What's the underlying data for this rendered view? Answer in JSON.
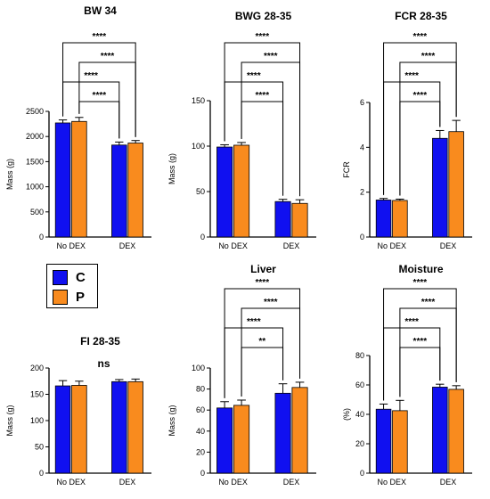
{
  "colors": {
    "C": "#1010f0",
    "P": "#f98b1e",
    "axis": "#000000"
  },
  "legend": {
    "items": [
      {
        "label": "C",
        "color": "#1010f0"
      },
      {
        "label": "P",
        "color": "#f98b1e"
      }
    ]
  },
  "chart_data": [
    {
      "type": "bar",
      "title": "BW 34",
      "ylabel": "Mass (g)",
      "categories": [
        "No DEX",
        "DEX"
      ],
      "ylim": [
        0,
        2500
      ],
      "yticks": [
        0,
        500,
        1000,
        1500,
        2000,
        2500
      ],
      "series": [
        {
          "name": "C",
          "values": [
            2270,
            1830
          ],
          "errors": [
            60,
            60
          ]
        },
        {
          "name": "P",
          "values": [
            2300,
            1870
          ],
          "errors": [
            80,
            50
          ]
        }
      ],
      "significance": [
        {
          "from": [
            "No DEX",
            "C"
          ],
          "to": [
            "DEX",
            "C"
          ],
          "label": "****"
        },
        {
          "from": [
            "No DEX",
            "C"
          ],
          "to": [
            "DEX",
            "P"
          ],
          "label": "****"
        },
        {
          "from": [
            "No DEX",
            "P"
          ],
          "to": [
            "DEX",
            "C"
          ],
          "label": "****"
        },
        {
          "from": [
            "No DEX",
            "P"
          ],
          "to": [
            "DEX",
            "P"
          ],
          "label": "****"
        }
      ]
    },
    {
      "type": "bar",
      "title": "BWG 28-35",
      "ylabel": "Mass (g)",
      "categories": [
        "No DEX",
        "DEX"
      ],
      "ylim": [
        0,
        150
      ],
      "yticks": [
        0,
        50,
        100,
        150
      ],
      "series": [
        {
          "name": "C",
          "values": [
            99,
            39
          ],
          "errors": [
            2.5,
            2.5
          ]
        },
        {
          "name": "P",
          "values": [
            101,
            37
          ],
          "errors": [
            3,
            4
          ]
        }
      ],
      "significance": [
        {
          "from": [
            "No DEX",
            "C"
          ],
          "to": [
            "DEX",
            "C"
          ],
          "label": "****"
        },
        {
          "from": [
            "No DEX",
            "C"
          ],
          "to": [
            "DEX",
            "P"
          ],
          "label": "****"
        },
        {
          "from": [
            "No DEX",
            "P"
          ],
          "to": [
            "DEX",
            "C"
          ],
          "label": "****"
        },
        {
          "from": [
            "No DEX",
            "P"
          ],
          "to": [
            "DEX",
            "P"
          ],
          "label": "****"
        }
      ]
    },
    {
      "type": "bar",
      "title": "FCR 28-35",
      "ylabel": "FCR",
      "categories": [
        "No DEX",
        "DEX"
      ],
      "ylim": [
        0,
        6
      ],
      "yticks": [
        0,
        2,
        4,
        6
      ],
      "series": [
        {
          "name": "C",
          "values": [
            1.65,
            4.4
          ],
          "errors": [
            0.07,
            0.35
          ]
        },
        {
          "name": "P",
          "values": [
            1.63,
            4.7
          ],
          "errors": [
            0.06,
            0.5
          ]
        }
      ],
      "significance": [
        {
          "from": [
            "No DEX",
            "C"
          ],
          "to": [
            "DEX",
            "C"
          ],
          "label": "****"
        },
        {
          "from": [
            "No DEX",
            "C"
          ],
          "to": [
            "DEX",
            "P"
          ],
          "label": "****"
        },
        {
          "from": [
            "No DEX",
            "P"
          ],
          "to": [
            "DEX",
            "C"
          ],
          "label": "****"
        },
        {
          "from": [
            "No DEX",
            "P"
          ],
          "to": [
            "DEX",
            "P"
          ],
          "label": "****"
        }
      ]
    },
    {
      "type": "bar",
      "title": "FI 28-35",
      "ylabel": "Mass (g)",
      "categories": [
        "No DEX",
        "DEX"
      ],
      "ylim": [
        0,
        200
      ],
      "yticks": [
        0,
        50,
        100,
        150,
        200
      ],
      "series": [
        {
          "name": "C",
          "values": [
            166,
            174
          ],
          "errors": [
            10,
            4
          ]
        },
        {
          "name": "P",
          "values": [
            167,
            174
          ],
          "errors": [
            8,
            5
          ]
        }
      ],
      "annotation": "ns",
      "significance": []
    },
    {
      "type": "bar",
      "title": "Liver",
      "ylabel": "Mass (g)",
      "categories": [
        "No DEX",
        "DEX"
      ],
      "ylim": [
        0,
        100
      ],
      "yticks": [
        0,
        20,
        40,
        60,
        80,
        100
      ],
      "series": [
        {
          "name": "C",
          "values": [
            62,
            76
          ],
          "errors": [
            6,
            9
          ]
        },
        {
          "name": "P",
          "values": [
            64.5,
            81.5
          ],
          "errors": [
            5,
            5
          ]
        }
      ],
      "significance": [
        {
          "from": [
            "No DEX",
            "C"
          ],
          "to": [
            "DEX",
            "C"
          ],
          "label": "****"
        },
        {
          "from": [
            "No DEX",
            "C"
          ],
          "to": [
            "DEX",
            "P"
          ],
          "label": "****"
        },
        {
          "from": [
            "No DEX",
            "P"
          ],
          "to": [
            "DEX",
            "C"
          ],
          "label": "**"
        },
        {
          "from": [
            "No DEX",
            "P"
          ],
          "to": [
            "DEX",
            "P"
          ],
          "label": "****"
        }
      ]
    },
    {
      "type": "bar",
      "title": "Moisture",
      "ylabel": "(%)",
      "categories": [
        "No DEX",
        "DEX"
      ],
      "ylim": [
        0,
        80
      ],
      "yticks": [
        0,
        20,
        40,
        60,
        80
      ],
      "series": [
        {
          "name": "C",
          "values": [
            43.5,
            58.5
          ],
          "errors": [
            3.5,
            2
          ]
        },
        {
          "name": "P",
          "values": [
            42.5,
            57
          ],
          "errors": [
            7,
            2.5
          ]
        }
      ],
      "significance": [
        {
          "from": [
            "No DEX",
            "C"
          ],
          "to": [
            "DEX",
            "C"
          ],
          "label": "****"
        },
        {
          "from": [
            "No DEX",
            "C"
          ],
          "to": [
            "DEX",
            "P"
          ],
          "label": "****"
        },
        {
          "from": [
            "No DEX",
            "P"
          ],
          "to": [
            "DEX",
            "C"
          ],
          "label": "****"
        },
        {
          "from": [
            "No DEX",
            "P"
          ],
          "to": [
            "DEX",
            "P"
          ],
          "label": "****"
        }
      ]
    }
  ]
}
